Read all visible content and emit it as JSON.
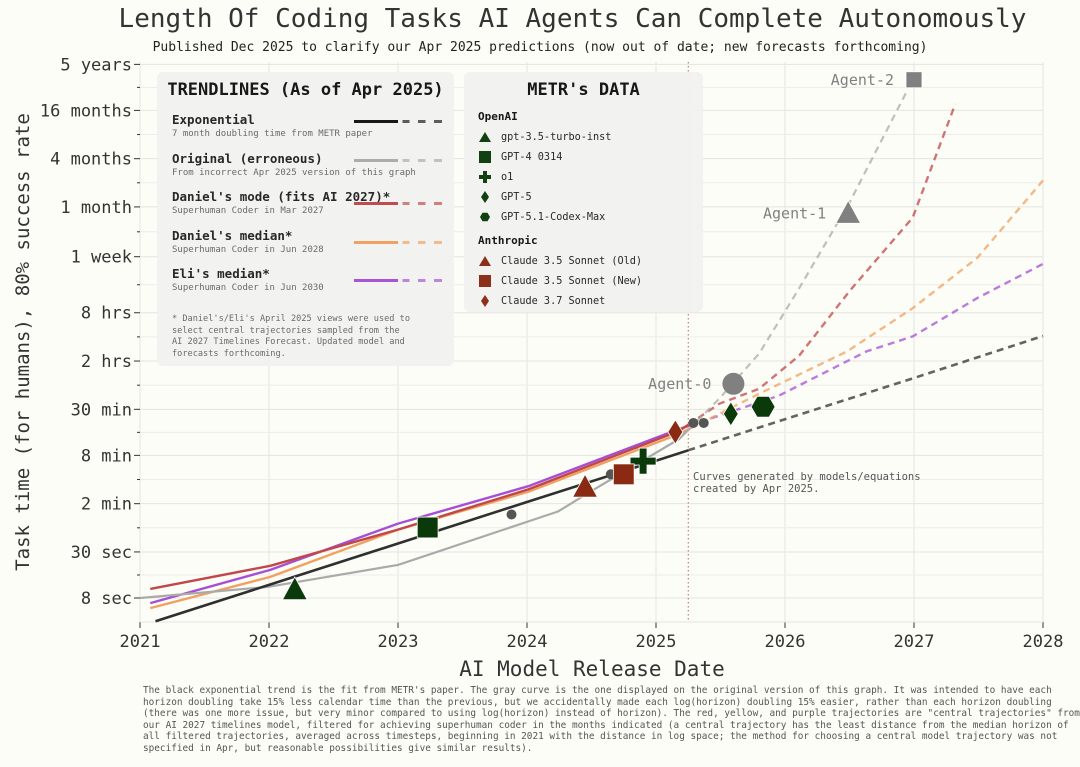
{
  "chart_data": {
    "type": "line",
    "title": "Length Of Coding Tasks AI Agents Can Complete Autonomously",
    "subtitle": "Published Dec 2025 to clarify our Apr 2025 predictions (now out of date; new forecasts forthcoming)",
    "xlabel": "AI Model Release Date",
    "ylabel": "Task time (for humans), 80% success rate",
    "x_unit": "year",
    "y_unit": "hours",
    "y_scale": "log",
    "xlim": [
      2021,
      2028
    ],
    "ylim": [
      0.0011,
      10000
    ],
    "grid": true,
    "x_ticks": [
      {
        "value": 2021,
        "label": "2021"
      },
      {
        "value": 2022,
        "label": "2022"
      },
      {
        "value": 2023,
        "label": "2023"
      },
      {
        "value": 2024,
        "label": "2024"
      },
      {
        "value": 2025,
        "label": "2025"
      },
      {
        "value": 2026,
        "label": "2026"
      },
      {
        "value": 2027,
        "label": "2027"
      },
      {
        "value": 2028,
        "label": "2028"
      }
    ],
    "y_ticks": [
      {
        "value": 0.00222,
        "label": "8 sec"
      },
      {
        "value": 0.00833,
        "label": "30 sec"
      },
      {
        "value": 0.0333,
        "label": "2 min"
      },
      {
        "value": 0.1333,
        "label": "8 min"
      },
      {
        "value": 0.5,
        "label": "30 min"
      },
      {
        "value": 2,
        "label": "2 hrs"
      },
      {
        "value": 8,
        "label": "8 hrs"
      },
      {
        "value": 40,
        "label": "1 week"
      },
      {
        "value": 167,
        "label": "1 month"
      },
      {
        "value": 667,
        "label": "4 months"
      },
      {
        "value": 2667,
        "label": "16 months"
      },
      {
        "value": 10000,
        "label": "5 years"
      }
    ],
    "projection_start": 2025.25,
    "projection_note": "Curves generated by models/equations created by Apr 2025.",
    "series": [
      {
        "name": "Exponential",
        "color": "#2f2f2f",
        "width": 2.6,
        "points": [
          [
            2021.12,
            0.00114
          ],
          [
            2022,
            0.00323
          ],
          [
            2023,
            0.0106
          ],
          [
            2024,
            0.0349
          ],
          [
            2025,
            0.114
          ],
          [
            2025.25,
            0.154
          ],
          [
            2026,
            0.376
          ],
          [
            2027,
            1.23
          ],
          [
            2028,
            4.1
          ]
        ]
      },
      {
        "name": "Original (erroneous)",
        "color": "#aaaaaa",
        "width": 2.2,
        "points": [
          [
            2021.0,
            0.00222
          ],
          [
            2021.99,
            0.00305
          ],
          [
            2023.0,
            0.00575
          ],
          [
            2024.24,
            0.0266
          ],
          [
            2024.52,
            0.0502
          ],
          [
            2025.18,
            0.213
          ],
          [
            2025.49,
            0.677
          ],
          [
            2025.8,
            2.48
          ],
          [
            2026.11,
            16.2
          ],
          [
            2026.5,
            189
          ],
          [
            2026.95,
            4819
          ]
        ]
      },
      {
        "name": "Daniel's mode (fits AI 2027)*",
        "color": "#c0474a",
        "width": 2.4,
        "points": [
          [
            2021.08,
            0.00288
          ],
          [
            2022.01,
            0.00559
          ],
          [
            2023.0,
            0.0158
          ],
          [
            2024.01,
            0.0502
          ],
          [
            2025.18,
            0.269
          ],
          [
            2025.49,
            0.586
          ],
          [
            2025.8,
            0.904
          ],
          [
            2026.11,
            2.34
          ],
          [
            2026.5,
            14.9
          ],
          [
            2026.99,
            123
          ],
          [
            2027.32,
            3214
          ]
        ]
      },
      {
        "name": "Daniel's median*",
        "color": "#f0a060",
        "width": 2.4,
        "points": [
          [
            2021.08,
            0.00166
          ],
          [
            2022.01,
            0.00407
          ],
          [
            2023.0,
            0.0158
          ],
          [
            2024.01,
            0.047
          ],
          [
            2025.18,
            0.246
          ],
          [
            2025.8,
            0.782
          ],
          [
            2026.48,
            2.63
          ],
          [
            2026.99,
            9.12
          ],
          [
            2027.49,
            38.6
          ],
          [
            2028.0,
            357
          ]
        ]
      },
      {
        "name": "Eli's median*",
        "color": "#a64fd6",
        "width": 2.4,
        "points": [
          [
            2021.08,
            0.00192
          ],
          [
            2022.01,
            0.00498
          ],
          [
            2023.0,
            0.0188
          ],
          [
            2024.01,
            0.055
          ],
          [
            2025.18,
            0.284
          ],
          [
            2025.95,
            0.738
          ],
          [
            2026.63,
            2.63
          ],
          [
            2026.99,
            4.06
          ],
          [
            2027.49,
            12.2
          ],
          [
            2028.0,
            32.5
          ]
        ]
      }
    ],
    "models": [
      {
        "name": "gpt-3.5-turbo-inst",
        "org": "OpenAI",
        "marker": "triangle",
        "x": 2022.2,
        "y": 0.0028
      },
      {
        "name": "GPT-4 0314",
        "org": "OpenAI",
        "marker": "square",
        "x": 2023.23,
        "y": 0.0168
      },
      {
        "name": "o1",
        "org": "OpenAI",
        "marker": "plus",
        "x": 2024.9,
        "y": 0.113
      },
      {
        "name": "GPT-5",
        "org": "OpenAI",
        "marker": "diamond",
        "x": 2025.58,
        "y": 0.439
      },
      {
        "name": "GPT-5.1-Codex-Max",
        "org": "OpenAI",
        "marker": "hexagon",
        "x": 2025.83,
        "y": 0.537
      },
      {
        "name": "Claude 3.5 Sonnet (Old)",
        "org": "Anthropic",
        "marker": "triangle",
        "x": 2024.45,
        "y": 0.0532
      },
      {
        "name": "Claude 3.5 Sonnet (New)",
        "org": "Anthropic",
        "marker": "square",
        "x": 2024.75,
        "y": 0.0774
      },
      {
        "name": "Claude 3.7 Sonnet",
        "org": "Anthropic",
        "marker": "diamond",
        "x": 2025.15,
        "y": 0.261
      }
    ],
    "other_points": [
      [
        2023.88,
        0.0244
      ],
      [
        2024.65,
        0.0774
      ],
      [
        2025.29,
        0.338
      ],
      [
        2025.37,
        0.338
      ]
    ],
    "agents": [
      {
        "name": "Agent-0",
        "marker": "circle",
        "x": 2025.6,
        "y": 1.04
      },
      {
        "name": "Agent-1",
        "marker": "triangle",
        "x": 2026.49,
        "y": 138
      },
      {
        "name": "Agent-2",
        "marker": "square",
        "x": 2027.0,
        "y": 6427
      }
    ],
    "colors": {
      "OpenAI": "#0a3a0a",
      "Anthropic": "#8a2a12",
      "other": "#555555",
      "agent": "#808080",
      "projection_line": "#c06060"
    }
  },
  "legend_trendlines": {
    "title": "TRENDLINES (As of Apr 2025)",
    "items": [
      {
        "name": "Exponential",
        "desc": "7 month doubling time from METR paper",
        "color": "#111111"
      },
      {
        "name": "Original (erroneous)",
        "desc": "From incorrect Apr 2025 version of this graph",
        "color": "#aaaaaa"
      },
      {
        "name": "Daniel's mode (fits AI 2027)*",
        "desc": "Superhuman Coder in Mar 2027",
        "color": "#c0474a"
      },
      {
        "name": "Daniel's median*",
        "desc": "Superhuman Coder in Jun 2028",
        "color": "#f0a060"
      },
      {
        "name": "Eli's median*",
        "desc": "Superhuman Coder in Jun 2030",
        "color": "#a64fd6"
      }
    ],
    "note": "* Daniel's/Eli's April 2025 views were used to select central trajectories sampled from the AI 2027 Timelines Forecast. Updated model and forecasts forthcoming."
  },
  "legend_data": {
    "title": "METR's DATA",
    "groups": [
      {
        "name": "OpenAI",
        "items": [
          "gpt-3.5-turbo-inst",
          "GPT-4 0314",
          "o1",
          "GPT-5",
          "GPT-5.1-Codex-Max"
        ]
      },
      {
        "name": "Anthropic",
        "items": [
          "Claude 3.5 Sonnet (Old)",
          "Claude 3.5 Sonnet (New)",
          "Claude 3.7 Sonnet"
        ]
      }
    ]
  },
  "footnote": "The black exponential trend is the fit from METR's paper. The gray curve is the one displayed on the original version of this graph. It was intended to have each horizon doubling take 15% less calendar time than the previous, but we accidentally made each log(horizon) doubling 15% easier, rather than each horizon doubling (there was one more issue, but very minor compared to using log(horizon) instead of horizon). The red, yellow, and purple trajectories are \"central trajectories\" from our AI 2027 timelines model, filtered for achieving superhuman coder in the months indicated (a central trajectory has the least distance from the median horizon of all filtered trajectories, averaged across timesteps, beginning in 2021 with the distance in log space; the method for choosing a central model trajectory was not specified in Apr, but reasonable possibilities give similar results)."
}
